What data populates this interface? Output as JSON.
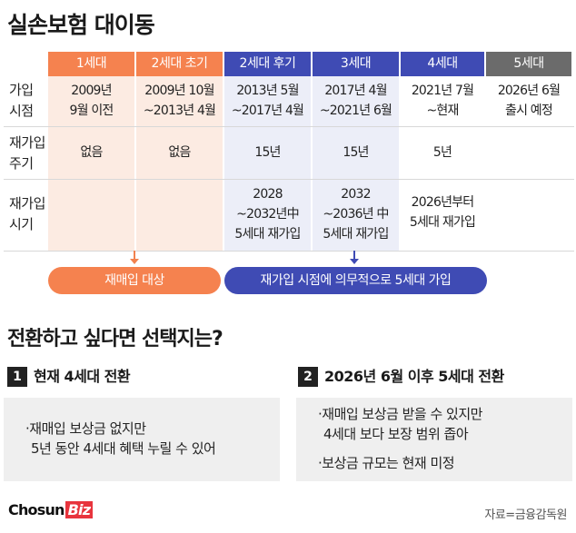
{
  "title": "실손보험 대이동",
  "colors": {
    "gen1": "#f5824f",
    "gen2": "#f5824f",
    "gen3": "#3f4bb4",
    "gen4": "#3f4bb4",
    "gen5": "#6b6b6b"
  },
  "table": {
    "generations": [
      "1세대",
      "2세대 초기",
      "2세대 후기",
      "3세대",
      "4세대",
      "5세대"
    ],
    "row_labels": {
      "join_time": [
        "가입",
        "시점"
      ],
      "rejoin_cycle": [
        "재가입",
        "주기"
      ],
      "rejoin_time": [
        "재가입",
        "시기"
      ]
    },
    "join_time": [
      [
        "2009년",
        "9월 이전"
      ],
      [
        "2009년 10월",
        "~2013년 4월"
      ],
      [
        "2013년 5월",
        "~2017년 4월"
      ],
      [
        "2017년 4월",
        "~2021년 6월"
      ],
      [
        "2021년 7월",
        "~현재"
      ],
      [
        "2026년 6월",
        "출시 예정"
      ]
    ],
    "rejoin_cycle": [
      "없음",
      "없음",
      "15년",
      "15년",
      "5년",
      ""
    ],
    "rejoin_time": [
      [],
      [],
      [
        "2028",
        "~2032년中",
        "5세대 재가입"
      ],
      [
        "2032",
        "~2036년 中",
        "5세대 재가입"
      ],
      [
        "2026년부터",
        "5세대 재가입"
      ],
      []
    ]
  },
  "pills": {
    "left": "재매입 대상",
    "right": "재가입 시점에 의무적으로 5세대 가입"
  },
  "question": "전환하고 싶다면 선택지는?",
  "options": [
    {
      "number": "1",
      "title": "현재 4세대 전환",
      "bullets": [
        [
          "·재매입 보상금 없지만",
          "5년 동안 4세대 혜택 누릴 수 있어"
        ]
      ]
    },
    {
      "number": "2",
      "title": "2026년 6월 이후 5세대 전환",
      "bullets": [
        [
          "·재매입 보상금 받을 수 있지만",
          "4세대 보다 보장 범위 좁아"
        ],
        [
          "·보상금 규모는 현재 미정"
        ]
      ]
    }
  ],
  "logo": {
    "main": "Chosun",
    "accent": "Biz"
  },
  "source": "자료=금융감독원"
}
